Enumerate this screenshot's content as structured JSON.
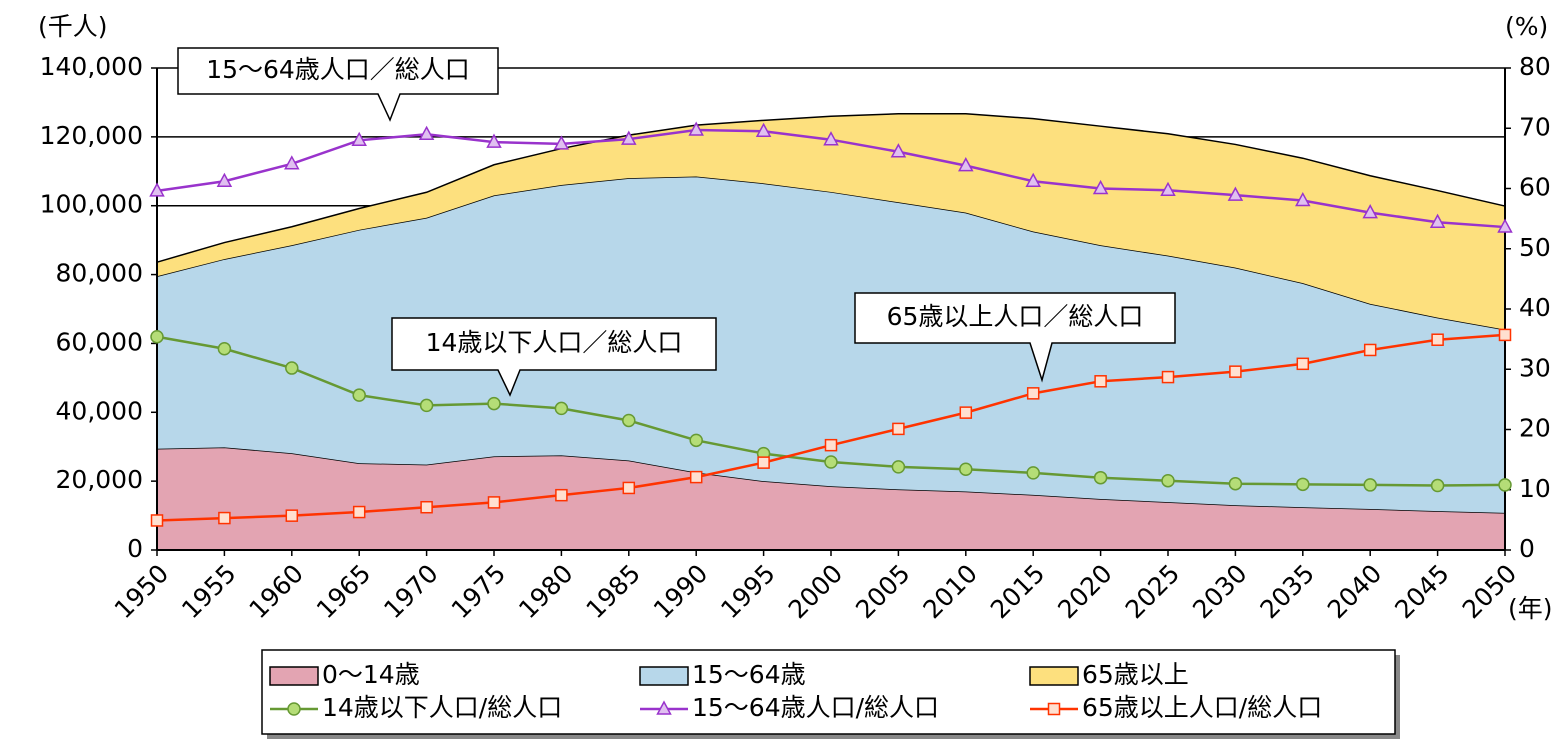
{
  "chart_data": {
    "type": "stacked-area-line",
    "y_label": "(千人)",
    "y2_label": "(%)",
    "x_label": "(年)",
    "x": [
      1950,
      1955,
      1960,
      1965,
      1970,
      1975,
      1980,
      1985,
      1990,
      1995,
      2000,
      2005,
      2010,
      2015,
      2020,
      2025,
      2030,
      2035,
      2040,
      2045,
      2050
    ],
    "xlim": [
      1950,
      2050
    ],
    "xticks": [
      1950,
      1955,
      1960,
      1965,
      1970,
      1975,
      1980,
      1985,
      1990,
      1995,
      2000,
      2005,
      2010,
      2015,
      2020,
      2025,
      2030,
      2035,
      2040,
      2045,
      2050
    ],
    "ylim": [
      0,
      140000
    ],
    "yticks": [
      0,
      {
        "value": 20000,
        "label": "20,000"
      },
      {
        "value": 40000,
        "label": "40,000"
      },
      {
        "value": 60000,
        "label": "60,000"
      },
      {
        "value": 80000,
        "label": "80,000"
      },
      {
        "value": 100000,
        "label": "100,000"
      },
      {
        "value": 120000,
        "label": "120,000"
      },
      {
        "value": 140000,
        "label": "140,000"
      }
    ],
    "y2lim": [
      0,
      80
    ],
    "y2ticks": [
      0,
      10,
      20,
      30,
      40,
      50,
      60,
      70,
      80
    ],
    "grid": true,
    "series": [
      {
        "name": "0～14歳",
        "kind": "area",
        "color": "#e3a4b2",
        "values": [
          29400,
          29800,
          28100,
          25200,
          24800,
          27200,
          27500,
          26000,
          22500,
          20000,
          18500,
          17600,
          17000,
          16000,
          14800,
          13900,
          13000,
          12400,
          11900,
          11300,
          10800
        ]
      },
      {
        "name": "15～64歳",
        "kind": "area",
        "color": "#b7d7ea",
        "values": [
          50100,
          54700,
          60400,
          67800,
          71700,
          75800,
          78500,
          82000,
          86000,
          86500,
          85500,
          83400,
          81000,
          76500,
          73700,
          71600,
          69000,
          65100,
          59600,
          56200,
          53200
        ]
      },
      {
        "name": "65歳以上",
        "kind": "area",
        "color": "#fde07e",
        "values": [
          4100,
          4800,
          5400,
          6200,
          7400,
          8900,
          10600,
          12500,
          14900,
          18300,
          22000,
          25700,
          28700,
          32800,
          34600,
          35400,
          35800,
          36300,
          37200,
          36900,
          35900
        ]
      },
      {
        "name": "14歳以下人口/総人口",
        "kind": "line",
        "axis": "y2",
        "color": "#669933",
        "marker": "circle",
        "marker_fill": "#b5dd77",
        "values": [
          35.4,
          33.4,
          30.2,
          25.7,
          24.0,
          24.3,
          23.5,
          21.5,
          18.2,
          16.0,
          14.6,
          13.8,
          13.4,
          12.8,
          12.0,
          11.5,
          11.0,
          10.9,
          10.8,
          10.7,
          10.8
        ]
      },
      {
        "name": "15～64歳人口/総人口",
        "kind": "line",
        "axis": "y2",
        "color": "#9933cc",
        "marker": "triangle",
        "marker_fill": "#e0c0f0",
        "values": [
          59.6,
          61.2,
          64.1,
          68.0,
          69.0,
          67.7,
          67.4,
          68.2,
          69.7,
          69.5,
          68.1,
          66.1,
          63.8,
          61.2,
          60.0,
          59.7,
          58.9,
          58.0,
          56.0,
          54.4,
          53.6
        ]
      },
      {
        "name": "65歳以上人口/総人口",
        "kind": "line",
        "axis": "y2",
        "color": "#ff3300",
        "marker": "square",
        "marker_fill": "#ffe0d0",
        "values": [
          4.9,
          5.3,
          5.7,
          6.3,
          7.1,
          7.9,
          9.1,
          10.3,
          12.1,
          14.5,
          17.4,
          20.1,
          22.8,
          26.0,
          28.0,
          28.7,
          29.6,
          30.9,
          33.2,
          34.9,
          35.7
        ]
      }
    ],
    "annotations": [
      "15～64歳人口／総人口",
      "14歳以下人口／総人口",
      "65歳以上人口／総人口"
    ]
  }
}
